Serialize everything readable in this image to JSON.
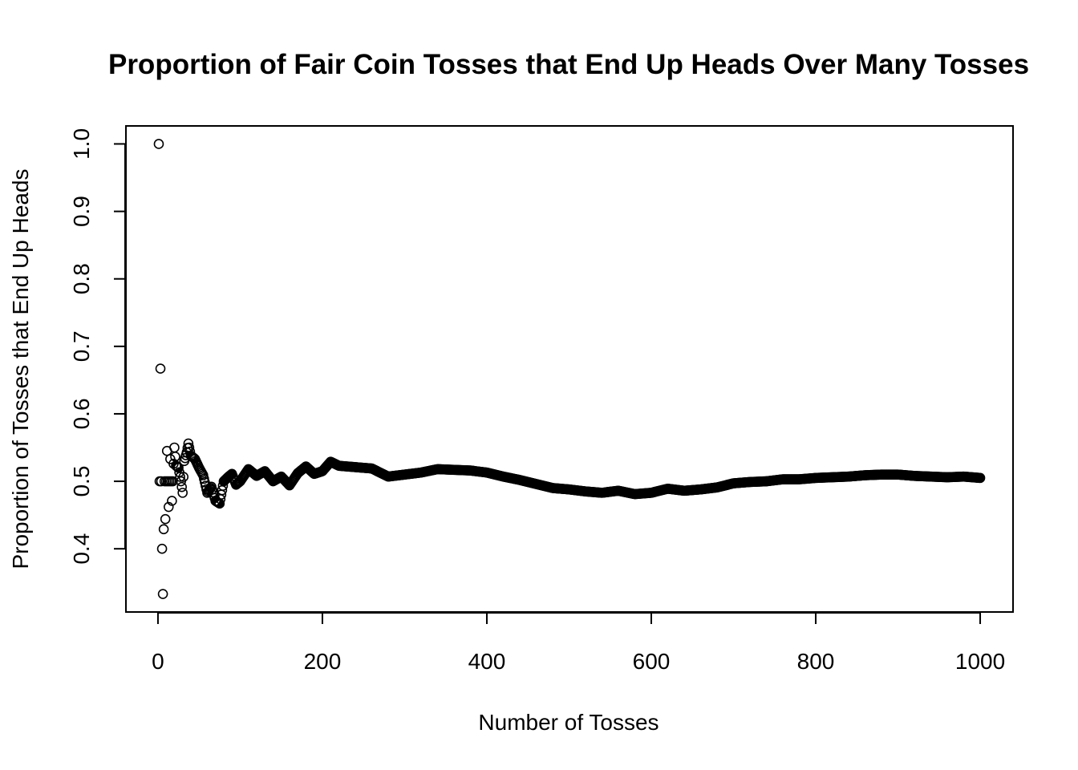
{
  "chart_data": {
    "type": "scatter",
    "title": "Proportion of Fair Coin Tosses that End Up Heads Over Many Tosses",
    "xlabel": "Number of Tosses",
    "ylabel": "Proportion of Tosses that End Up Heads",
    "xlim": [
      1,
      1000
    ],
    "ylim": [
      0.333,
      1.0
    ],
    "x_ticks": [
      "0",
      "200",
      "400",
      "600",
      "800",
      "1000"
    ],
    "y_ticks": [
      "0.4",
      "0.5",
      "0.6",
      "0.7",
      "0.8",
      "0.9",
      "1.0"
    ],
    "grid": false,
    "marker": "open-circle",
    "series": [
      {
        "x": [
          1,
          2,
          3,
          4,
          5,
          6,
          7,
          8,
          9,
          10,
          11,
          12,
          13,
          14,
          15,
          16,
          17,
          18,
          19,
          20,
          22,
          25,
          28,
          30,
          32,
          35,
          37,
          40,
          45,
          50,
          55,
          60,
          65,
          70,
          75,
          80,
          85,
          90,
          95,
          100,
          110,
          120,
          130,
          140,
          150,
          160,
          170,
          180,
          190,
          200,
          210,
          220,
          240,
          260,
          280,
          300,
          320,
          340,
          360,
          380,
          400,
          420,
          440,
          460,
          480,
          500,
          520,
          540,
          560,
          580,
          600,
          620,
          640,
          660,
          680,
          700,
          720,
          740,
          760,
          780,
          800,
          820,
          840,
          860,
          880,
          900,
          920,
          940,
          960,
          980,
          1000
        ],
        "y": [
          1.0,
          0.5,
          0.667,
          0.5,
          0.4,
          0.333,
          0.429,
          0.5,
          0.444,
          0.5,
          0.545,
          0.5,
          0.462,
          0.5,
          0.533,
          0.5,
          0.471,
          0.5,
          0.526,
          0.55,
          0.523,
          0.52,
          0.5,
          0.483,
          0.53,
          0.543,
          0.556,
          0.538,
          0.533,
          0.52,
          0.509,
          0.483,
          0.492,
          0.471,
          0.467,
          0.5,
          0.506,
          0.511,
          0.495,
          0.5,
          0.518,
          0.508,
          0.515,
          0.5,
          0.507,
          0.494,
          0.512,
          0.522,
          0.511,
          0.515,
          0.529,
          0.523,
          0.521,
          0.519,
          0.507,
          0.51,
          0.513,
          0.518,
          0.517,
          0.516,
          0.513,
          0.507,
          0.502,
          0.496,
          0.49,
          0.488,
          0.485,
          0.483,
          0.486,
          0.481,
          0.483,
          0.489,
          0.486,
          0.488,
          0.491,
          0.497,
          0.499,
          0.5,
          0.503,
          0.503,
          0.505,
          0.506,
          0.507,
          0.509,
          0.51,
          0.51,
          0.508,
          0.507,
          0.506,
          0.507,
          0.505
        ]
      }
    ]
  }
}
